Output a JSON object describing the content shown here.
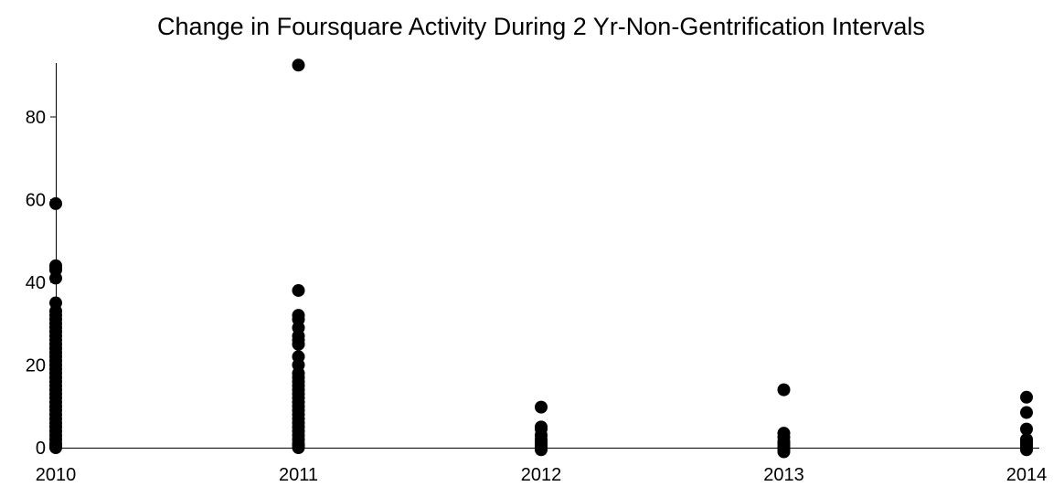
{
  "chart_data": {
    "type": "scatter",
    "title": "Change in Foursquare Activity During 2 Yr-Non-Gentrification Intervals",
    "xlabel": "",
    "ylabel": "",
    "xlim": [
      2010,
      2014
    ],
    "ylim": [
      0,
      93
    ],
    "x_ticks": [
      "2010",
      "2011",
      "2012",
      "2013",
      "2014"
    ],
    "y_ticks": [
      0,
      20,
      40,
      60,
      80
    ],
    "grid": false,
    "legend": "none",
    "marker_color": "#000000",
    "axis_color": "#000000",
    "series": [
      {
        "x": 2010,
        "values": [
          59,
          44,
          43.5,
          43,
          41,
          35,
          33,
          32,
          31,
          30,
          29,
          28,
          27,
          26,
          25,
          24,
          23,
          22,
          21,
          20,
          19,
          18,
          17,
          16,
          15,
          14,
          13,
          12,
          11,
          10,
          9,
          8,
          7,
          6,
          5,
          4,
          3,
          2,
          1,
          0.5,
          0
        ]
      },
      {
        "x": 2011,
        "values": [
          92.5,
          38,
          32,
          31,
          29,
          27,
          26,
          25,
          22,
          20,
          18,
          17,
          16,
          15,
          14,
          13,
          12,
          11,
          10,
          9,
          8,
          7,
          6,
          5,
          4,
          3,
          2,
          1,
          0.5,
          0
        ]
      },
      {
        "x": 2012,
        "values": [
          9.8,
          5,
          4.5,
          3,
          2,
          1.5,
          1,
          0.5,
          0,
          -0.5
        ]
      },
      {
        "x": 2013,
        "values": [
          14,
          3.5,
          2.5,
          1.5,
          1,
          0.5,
          0,
          -0.5,
          -1
        ]
      },
      {
        "x": 2014,
        "values": [
          12.2,
          8.5,
          4.5,
          2,
          1.5,
          1,
          0.5,
          0,
          -0.5
        ]
      }
    ]
  }
}
